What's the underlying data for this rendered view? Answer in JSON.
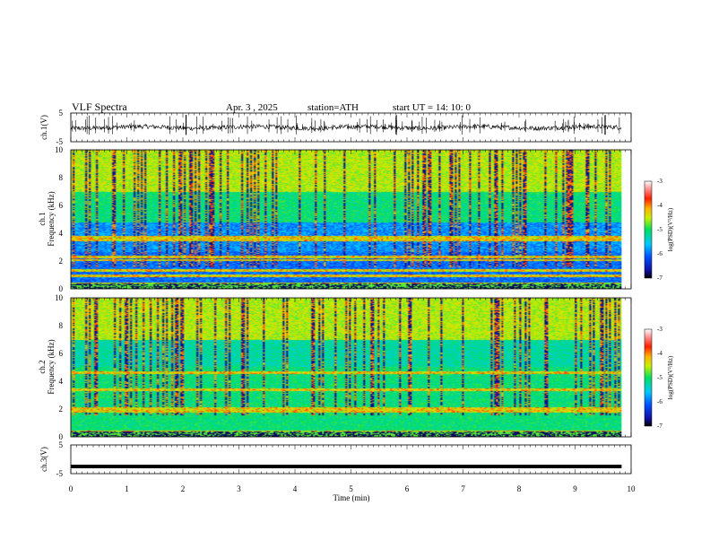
{
  "header": {
    "title": "VLF  Spectra",
    "date": "Apr. 3  , 2025",
    "station": "station=ATH",
    "start": "start  UT  =   14: 10: 0"
  },
  "chart_data": {
    "type": "heatmap",
    "time_axis": {
      "label": "Time  (min)",
      "range": [
        0,
        10
      ],
      "ticks": [
        "0",
        "1",
        "2",
        "3",
        "4",
        "5",
        "6",
        "7",
        "8",
        "9",
        "10"
      ],
      "data_extent": [
        0,
        9.83
      ]
    },
    "panels": [
      {
        "id": "ch1_waveform",
        "type": "line",
        "ylabel": "ch.1(V)",
        "ylim": [
          -5,
          5
        ],
        "yticks": [
          "5",
          "-5"
        ],
        "baseline": 0
      },
      {
        "id": "ch1_spectrogram",
        "type": "heatmap",
        "ylabel_top": "ch.1",
        "ylabel": "Frequency  (kHz)",
        "ylim": [
          0,
          10
        ],
        "yticks": [
          "10",
          "8",
          "6",
          "4",
          "2",
          "0"
        ],
        "bands_khz": [
          0.3,
          0.9,
          1.3,
          2.05,
          2.25,
          3.5,
          3.7
        ],
        "colorbar": {
          "label": "log(PSD)(V²/Hz)",
          "range": [
            -7,
            -3
          ],
          "ticks": [
            "-3",
            "-4",
            "-5",
            "-6",
            "-7"
          ]
        }
      },
      {
        "id": "ch2_spectrogram",
        "type": "heatmap",
        "ylabel_top": "ch.2",
        "ylabel": "Frequency  (kHz)",
        "ylim": [
          0,
          10
        ],
        "yticks": [
          "10",
          "8",
          "6",
          "4",
          "2",
          "0"
        ],
        "bands_khz": [
          0.3,
          1.8,
          2.0,
          3.4,
          4.6
        ],
        "colorbar": {
          "label": "log(PSD)(V²/Hz)",
          "range": [
            -7,
            -3
          ],
          "ticks": [
            "-3",
            "-4",
            "-5",
            "-6",
            "-7"
          ]
        }
      },
      {
        "id": "ch3_waveform",
        "type": "line",
        "ylabel": "ch.3(V)",
        "ylim": [
          -5,
          5
        ],
        "yticks": [
          "5",
          "-5"
        ],
        "baseline": -2.5
      }
    ]
  }
}
